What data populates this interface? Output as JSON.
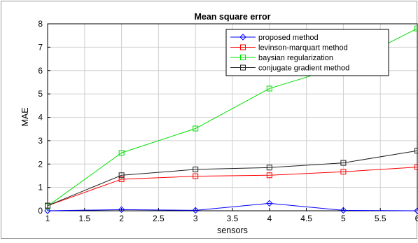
{
  "chart_data": {
    "type": "line",
    "title": "Mean square error",
    "xlabel": "sensors",
    "ylabel": "MAE",
    "xlim": [
      1,
      6
    ],
    "ylim": [
      0,
      8
    ],
    "x": [
      1,
      2,
      3,
      4,
      5,
      6
    ],
    "xticks": [
      "1",
      "1.5",
      "2",
      "2.5",
      "3",
      "3.5",
      "4",
      "4.5",
      "5",
      "5.5",
      "6"
    ],
    "yticks": [
      "0",
      "1",
      "2",
      "3",
      "4",
      "5",
      "6",
      "7",
      "8"
    ],
    "grid": true,
    "legend_position": "top-right",
    "series": [
      {
        "name": "proposed method",
        "color": "#0000ff",
        "marker": "diamond",
        "values": [
          0.0,
          0.05,
          0.02,
          0.32,
          0.02,
          0.0
        ]
      },
      {
        "name": "levinson-marquart method",
        "color": "#ff0000",
        "marker": "square",
        "values": [
          0.22,
          1.35,
          1.48,
          1.52,
          1.67,
          1.87
        ]
      },
      {
        "name": "baysian regularization",
        "color": "#00e000",
        "marker": "square",
        "values": [
          0.2,
          2.48,
          3.52,
          5.23,
          6.2,
          7.8
        ]
      },
      {
        "name": "conjugate gradient method",
        "color": "#202020",
        "marker": "square",
        "values": [
          0.22,
          1.52,
          1.77,
          1.85,
          2.05,
          2.57
        ]
      }
    ]
  }
}
